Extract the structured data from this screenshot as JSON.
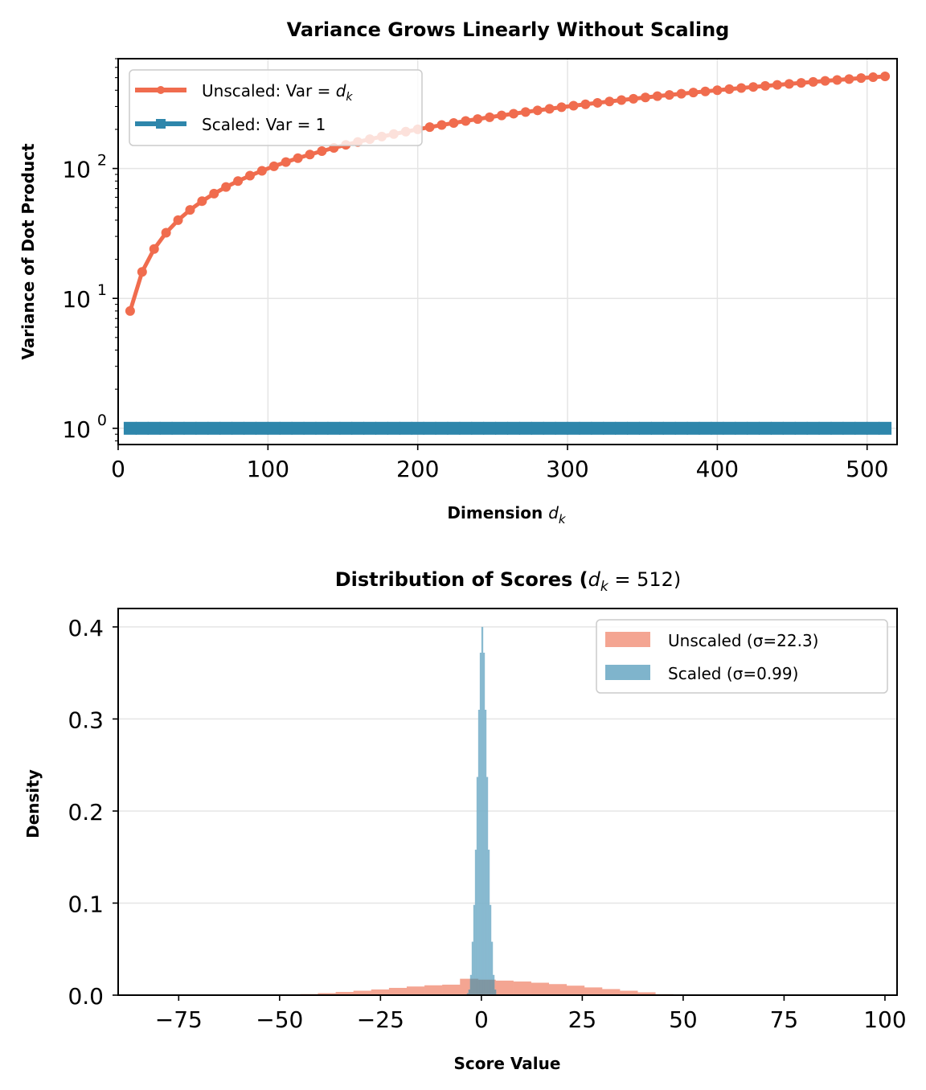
{
  "chart_data": [
    {
      "type": "line",
      "title": "Variance Grows Linearly Without Scaling",
      "xlabel": "Dimension",
      "xlabel_math": "d",
      "xlabel_sub": "k",
      "ylabel": "Variance of Dot Product",
      "yscale": "log",
      "xlim": [
        0,
        520
      ],
      "ylim": [
        0.75,
        700
      ],
      "grid": true,
      "legend_placement": "top-left",
      "x_ticks": [
        0,
        100,
        200,
        300,
        400,
        500
      ],
      "x_tick_labels": [
        "0",
        "100",
        "200",
        "300",
        "400",
        "500"
      ],
      "y_ticks": [
        1,
        10,
        100
      ],
      "y_tick_labels": [
        {
          "base": "10",
          "exp": "0"
        },
        {
          "base": "10",
          "exp": "1"
        },
        {
          "base": "10",
          "exp": "2"
        }
      ],
      "x": [
        8,
        16,
        24,
        32,
        40,
        48,
        56,
        64,
        72,
        80,
        88,
        96,
        104,
        112,
        120,
        128,
        136,
        144,
        152,
        160,
        168,
        176,
        184,
        192,
        200,
        208,
        216,
        224,
        232,
        240,
        248,
        256,
        264,
        272,
        280,
        288,
        296,
        304,
        312,
        320,
        328,
        336,
        344,
        352,
        360,
        368,
        376,
        384,
        392,
        400,
        408,
        416,
        424,
        432,
        440,
        448,
        456,
        464,
        472,
        480,
        488,
        496,
        504,
        512
      ],
      "series": [
        {
          "name": "Unscaled: Var = d_k",
          "legend_text": "Unscaled: Var = ",
          "legend_math": "d",
          "legend_sub": "k",
          "color": "#f06c4e",
          "marker": "circle",
          "values": [
            8,
            16,
            24,
            32,
            40,
            48,
            56,
            64,
            72,
            80,
            88,
            96,
            104,
            112,
            120,
            128,
            136,
            144,
            152,
            160,
            168,
            176,
            184,
            192,
            200,
            208,
            216,
            224,
            232,
            240,
            248,
            256,
            264,
            272,
            280,
            288,
            296,
            304,
            312,
            320,
            328,
            336,
            344,
            352,
            360,
            368,
            376,
            384,
            392,
            400,
            408,
            416,
            424,
            432,
            440,
            448,
            456,
            464,
            472,
            480,
            488,
            496,
            504,
            512
          ]
        },
        {
          "name": "Scaled: Var = 1",
          "legend_text": "Scaled: Var = 1",
          "color": "#2e86ab",
          "marker": "square",
          "values": [
            1,
            1,
            1,
            1,
            1,
            1,
            1,
            1,
            1,
            1,
            1,
            1,
            1,
            1,
            1,
            1,
            1,
            1,
            1,
            1,
            1,
            1,
            1,
            1,
            1,
            1,
            1,
            1,
            1,
            1,
            1,
            1,
            1,
            1,
            1,
            1,
            1,
            1,
            1,
            1,
            1,
            1,
            1,
            1,
            1,
            1,
            1,
            1,
            1,
            1,
            1,
            1,
            1,
            1,
            1,
            1,
            1,
            1,
            1,
            1,
            1,
            1,
            1,
            1
          ]
        }
      ]
    },
    {
      "type": "histogram",
      "title_prefix": "Distribution of Scores (",
      "title_math": "d",
      "title_sub": "k",
      "title_suffix": " = 512)",
      "xlabel": "Score Value",
      "ylabel": "Density",
      "xlim": [
        -90,
        103
      ],
      "ylim": [
        0,
        0.42
      ],
      "grid": true,
      "legend_placement": "top-right",
      "x_ticks": [
        -75,
        -50,
        -25,
        0,
        25,
        50,
        75,
        100
      ],
      "x_tick_labels": [
        "−75",
        "−50",
        "−25",
        "0",
        "25",
        "50",
        "75",
        "100"
      ],
      "y_ticks": [
        0.0,
        0.1,
        0.2,
        0.3,
        0.4
      ],
      "y_tick_labels": [
        "0.0",
        "0.1",
        "0.2",
        "0.3",
        "0.4"
      ],
      "series": [
        {
          "name": "Unscaled (σ=22.3)",
          "color": "#f4a592",
          "bin_edges": [
            -49.3,
            -44.9,
            -40.5,
            -36.1,
            -31.7,
            -27.3,
            -22.9,
            -18.5,
            -14.1,
            -9.7,
            -5.3,
            -0.9,
            3.5,
            7.9,
            12.3,
            16.7,
            21.1,
            25.5,
            29.9,
            34.3,
            38.7,
            43.1,
            47.5
          ],
          "density": [
            0.0008,
            0.0012,
            0.0022,
            0.0035,
            0.0048,
            0.0062,
            0.0079,
            0.0094,
            0.0107,
            0.0114,
            0.0178,
            0.0168,
            0.0158,
            0.0148,
            0.0135,
            0.012,
            0.0103,
            0.0084,
            0.0066,
            0.0048,
            0.0031,
            0.0011
          ]
        },
        {
          "name": "Scaled (σ=0.99)",
          "color": "#7fb4cc",
          "bin_edges": [
            -3.6,
            -3.2,
            -2.8,
            -2.4,
            -2.0,
            -1.6,
            -1.2,
            -0.8,
            -0.4,
            0.0,
            0.4,
            0.8,
            1.2,
            1.6,
            2.0,
            2.4,
            2.8,
            3.2,
            3.6
          ],
          "density": [
            0.002,
            0.006,
            0.022,
            0.058,
            0.098,
            0.158,
            0.237,
            0.31,
            0.372,
            0.4,
            0.372,
            0.31,
            0.237,
            0.158,
            0.098,
            0.058,
            0.022,
            0.006
          ]
        }
      ]
    }
  ]
}
